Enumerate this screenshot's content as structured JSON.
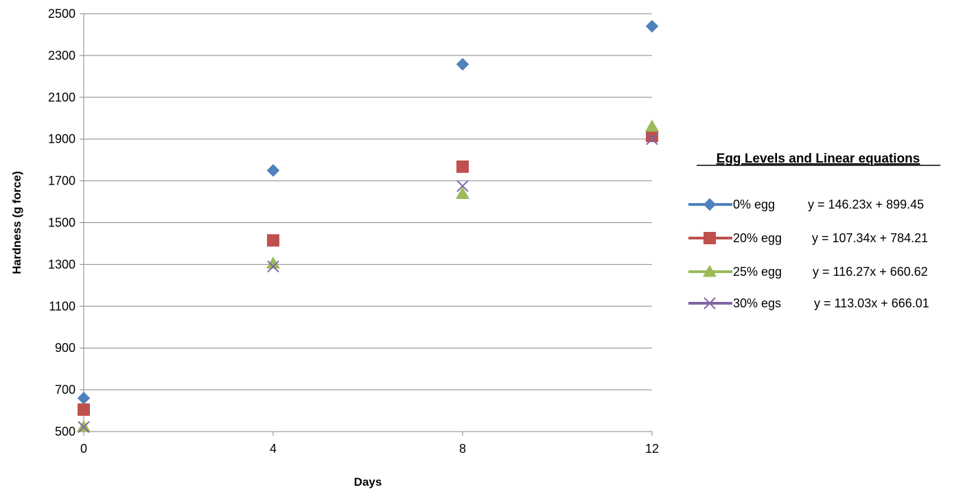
{
  "chart_data": {
    "type": "scatter",
    "title": "",
    "xlabel": "Days",
    "ylabel": "Hardness (g force)",
    "x": [
      0,
      4,
      8,
      12
    ],
    "xticks": [
      0,
      4,
      8,
      12
    ],
    "yticks": [
      500,
      700,
      900,
      1100,
      1300,
      1500,
      1700,
      1900,
      2100,
      2300,
      2500
    ],
    "xlim": [
      0,
      12
    ],
    "ylim": [
      500,
      2500
    ],
    "grid": "horizontal",
    "legend_position": "right",
    "legend_title": "Egg Levels and Linear equations",
    "series": [
      {
        "name": "0% egg",
        "equation": "y = 146.23x + 899.45",
        "marker": "diamond",
        "color": "#4F81BD",
        "values": [
          660,
          1750,
          2258,
          2440
        ]
      },
      {
        "name": "20% egg",
        "equation": "y = 107.34x + 784.21",
        "marker": "square",
        "color": "#C0504D",
        "values": [
          605,
          1415,
          1768,
          1915
        ]
      },
      {
        "name": "25% egg",
        "equation": "y = 116.27x + 660.62",
        "marker": "triangle",
        "color": "#9BBB59",
        "values": [
          522,
          1305,
          1638,
          1960
        ]
      },
      {
        "name": "30% egs",
        "equation": "y = 113.03x + 666.01",
        "marker": "x",
        "color": "#8064A2",
        "values": [
          522,
          1290,
          1675,
          1900
        ]
      }
    ]
  }
}
